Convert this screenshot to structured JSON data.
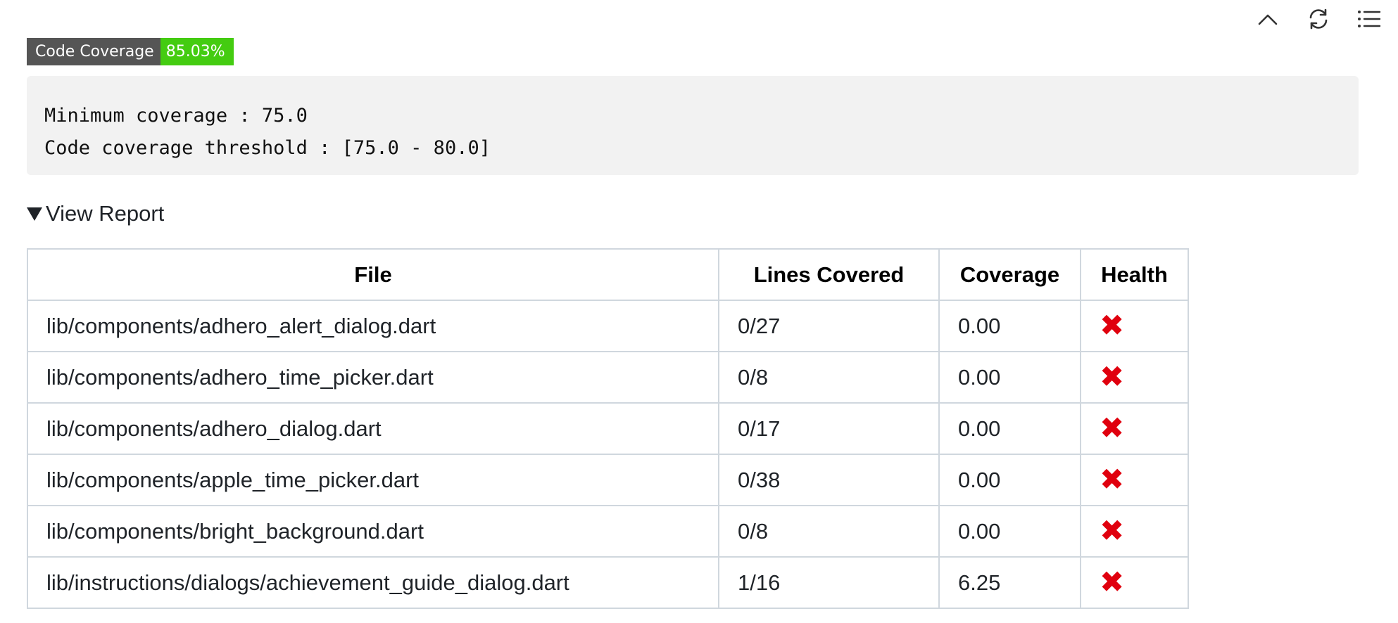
{
  "toolbar": {
    "icons": [
      "chevron-up-icon",
      "refresh-icon",
      "list-icon"
    ]
  },
  "badge": {
    "label": "Code Coverage",
    "value": "85.03%",
    "label_color": "#555555",
    "value_color": "#44cc11"
  },
  "code": {
    "line1": "Minimum coverage : 75.0",
    "line2": "Code coverage threshold : [75.0 - 80.0]"
  },
  "report": {
    "summary_label": "View Report",
    "headers": {
      "file": "File",
      "lines": "Lines Covered",
      "coverage": "Coverage",
      "health": "Health"
    },
    "rows": [
      {
        "file": "lib/components/adhero_alert_dialog.dart",
        "lines": "0/27",
        "coverage": "0.00",
        "health": "✖"
      },
      {
        "file": "lib/components/adhero_time_picker.dart",
        "lines": "0/8",
        "coverage": "0.00",
        "health": "✖"
      },
      {
        "file": "lib/components/adhero_dialog.dart",
        "lines": "0/17",
        "coverage": "0.00",
        "health": "✖"
      },
      {
        "file": "lib/components/apple_time_picker.dart",
        "lines": "0/38",
        "coverage": "0.00",
        "health": "✖"
      },
      {
        "file": "lib/components/bright_background.dart",
        "lines": "0/8",
        "coverage": "0.00",
        "health": "✖"
      },
      {
        "file": "lib/instructions/dialogs/achievement_guide_dialog.dart",
        "lines": "1/16",
        "coverage": "6.25",
        "health": "✖"
      }
    ],
    "health_fail_color": "#e0000e"
  }
}
